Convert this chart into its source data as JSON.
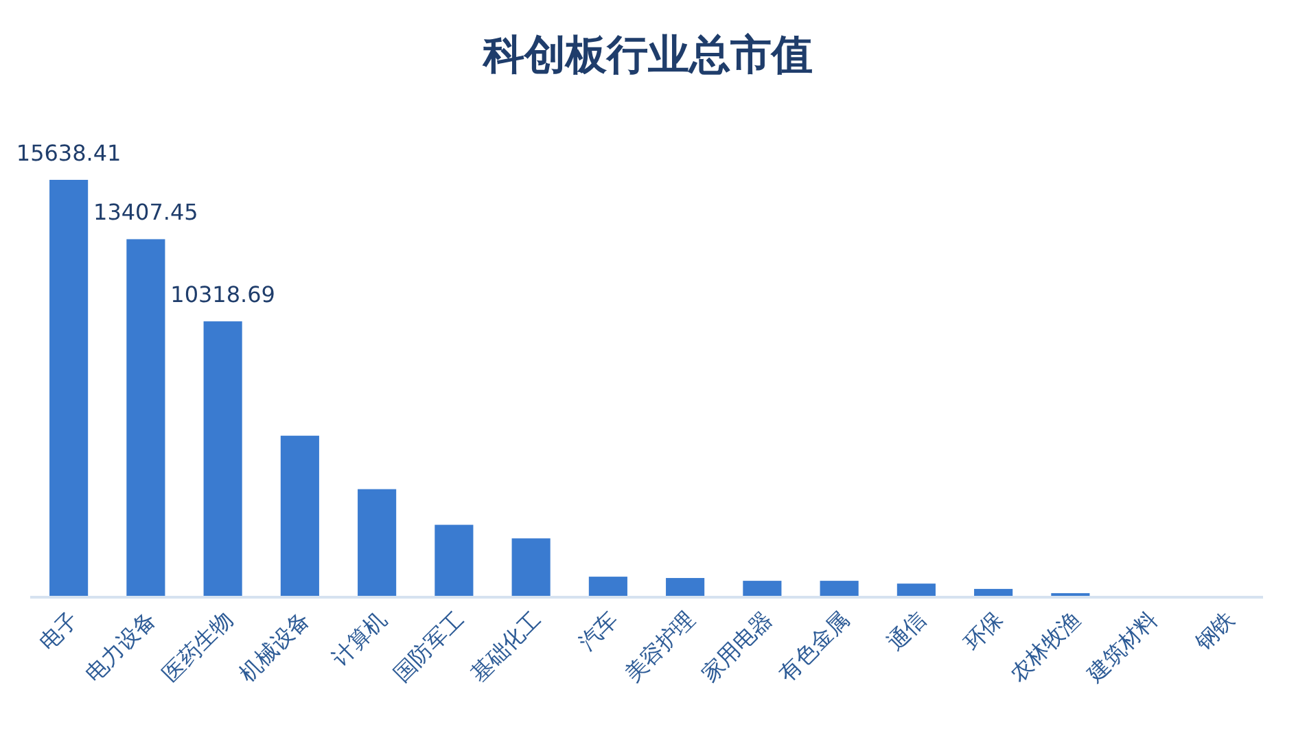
{
  "chart_data": {
    "type": "bar",
    "title": "科创板行业总市值",
    "categories": [
      "电子",
      "电力设备",
      "医药生物",
      "机械设备",
      "计算机",
      "国防军工",
      "基础化工",
      "汽车",
      "美容护理",
      "家用电器",
      "有色金属",
      "通信",
      "环保",
      "农林牧渔",
      "建筑材料",
      "钢铁"
    ],
    "values": [
      15638.41,
      13407.45,
      10318.69,
      6020,
      4010,
      2670,
      2160,
      720,
      670,
      565,
      565,
      460,
      260,
      100,
      0,
      0
    ],
    "value_labels": [
      "15638.41",
      "13407.45",
      "10318.69",
      null,
      null,
      null,
      null,
      null,
      null,
      null,
      null,
      null,
      null,
      null,
      null,
      null
    ],
    "color": "#3a7bd0"
  }
}
